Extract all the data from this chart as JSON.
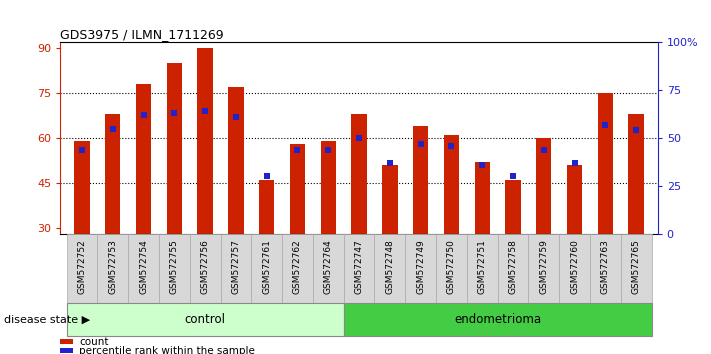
{
  "title": "GDS3975 / ILMN_1711269",
  "samples": [
    "GSM572752",
    "GSM572753",
    "GSM572754",
    "GSM572755",
    "GSM572756",
    "GSM572757",
    "GSM572761",
    "GSM572762",
    "GSM572764",
    "GSM572747",
    "GSM572748",
    "GSM572749",
    "GSM572750",
    "GSM572751",
    "GSM572758",
    "GSM572759",
    "GSM572760",
    "GSM572763",
    "GSM572765"
  ],
  "counts": [
    59,
    68,
    78,
    85,
    90,
    77,
    46,
    58,
    59,
    68,
    51,
    64,
    61,
    52,
    46,
    60,
    51,
    75,
    68
  ],
  "percentile_ranks": [
    44,
    55,
    62,
    63,
    64,
    61,
    30,
    44,
    44,
    50,
    37,
    47,
    46,
    36,
    30,
    44,
    37,
    57,
    54
  ],
  "group_control_count": 9,
  "group_endometrioma_count": 10,
  "ymin": 28,
  "ymax": 92,
  "yticks_left": [
    30,
    45,
    60,
    75,
    90
  ],
  "yticks_right": [
    0,
    25,
    50,
    75,
    100
  ],
  "right_ylabels": [
    "0",
    "25",
    "50",
    "75",
    "100%"
  ],
  "hgrid_at": [
    45,
    60,
    75
  ],
  "bar_color": "#cc2200",
  "dot_color": "#2222cc",
  "control_bg_color": "#ccffcc",
  "endometrioma_bg_color": "#44cc44",
  "xtick_bg_color": "#d8d8d8",
  "group_strip_border": "#888888",
  "legend_label_count": "count",
  "legend_label_pct": "percentile rank within the sample",
  "disease_state_label": "disease state",
  "group_control_label": "control",
  "group_endometrioma_label": "endometrioma",
  "bar_width": 0.5
}
